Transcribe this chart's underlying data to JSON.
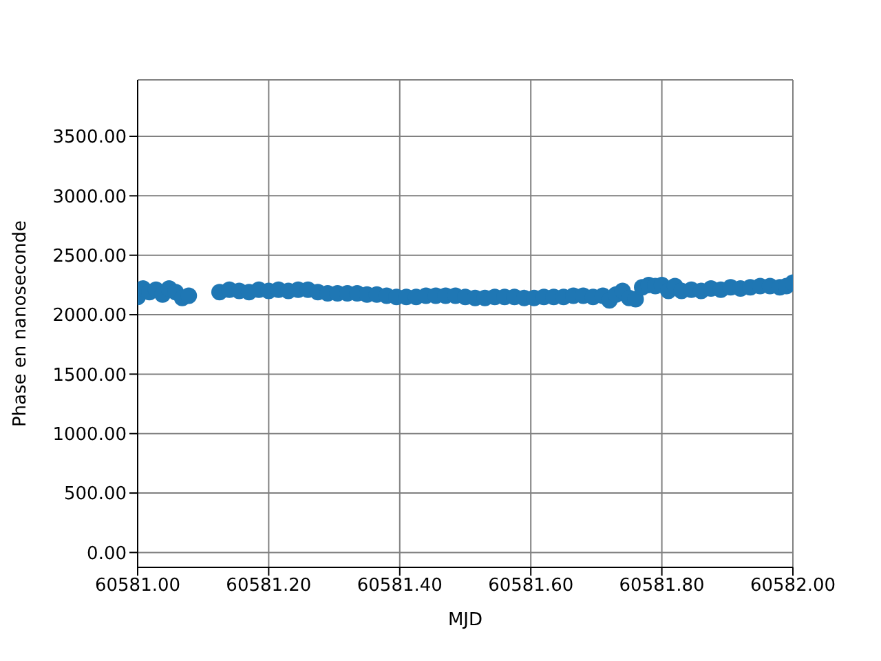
{
  "chart_data": {
    "type": "scatter",
    "xlabel": "MJD",
    "ylabel": "Phase en nanoseconde",
    "grid": true,
    "marker": "circle",
    "xlim": [
      60581.0,
      60582.0
    ],
    "xticks": [
      {
        "value": 60581.0,
        "label": "60581.00"
      },
      {
        "value": 60581.2,
        "label": "60581.20"
      },
      {
        "value": 60581.4,
        "label": "60581.40"
      },
      {
        "value": 60581.6,
        "label": "60581.60"
      },
      {
        "value": 60581.8,
        "label": "60581.80"
      },
      {
        "value": 60582.0,
        "label": "60582.00"
      }
    ],
    "ylim": [
      -125,
      3975
    ],
    "yticks": [
      {
        "value": 0,
        "label": "0.00"
      },
      {
        "value": 500,
        "label": "500.00"
      },
      {
        "value": 1000,
        "label": "1000.00"
      },
      {
        "value": 1500,
        "label": "1500.00"
      },
      {
        "value": 2000,
        "label": "2000.00"
      },
      {
        "value": 2500,
        "label": "2500.00"
      },
      {
        "value": 3000,
        "label": "3000.00"
      },
      {
        "value": 3500,
        "label": "3500.00"
      }
    ],
    "series": [
      {
        "color": "#1f77b4",
        "x": [
          60581.0,
          60581.008,
          60581.018,
          60581.028,
          60581.038,
          60581.048,
          60581.058,
          60581.068,
          60581.078,
          60581.125,
          60581.14,
          60581.155,
          60581.17,
          60581.185,
          60581.2,
          60581.215,
          60581.23,
          60581.245,
          60581.26,
          60581.275,
          60581.29,
          60581.305,
          60581.32,
          60581.335,
          60581.35,
          60581.365,
          60581.38,
          60581.395,
          60581.41,
          60581.425,
          60581.44,
          60581.455,
          60581.47,
          60581.485,
          60581.5,
          60581.515,
          60581.53,
          60581.545,
          60581.56,
          60581.575,
          60581.59,
          60581.605,
          60581.62,
          60581.635,
          60581.65,
          60581.665,
          60581.68,
          60581.695,
          60581.71,
          60581.72,
          60581.73,
          60581.74,
          60581.75,
          60581.76,
          60581.77,
          60581.78,
          60581.79,
          60581.8,
          60581.81,
          60581.82,
          60581.83,
          60581.845,
          60581.86,
          60581.875,
          60581.89,
          60581.905,
          60581.92,
          60581.935,
          60581.95,
          60581.965,
          60581.98,
          60581.99,
          60582.0
        ],
        "values": [
          2150,
          2220,
          2190,
          2210,
          2170,
          2220,
          2190,
          2140,
          2160,
          2190,
          2210,
          2200,
          2190,
          2210,
          2200,
          2210,
          2200,
          2210,
          2210,
          2190,
          2180,
          2180,
          2180,
          2180,
          2170,
          2170,
          2160,
          2150,
          2150,
          2150,
          2160,
          2160,
          2160,
          2160,
          2150,
          2140,
          2140,
          2150,
          2150,
          2150,
          2140,
          2140,
          2150,
          2150,
          2150,
          2160,
          2160,
          2150,
          2160,
          2120,
          2170,
          2200,
          2140,
          2130,
          2230,
          2250,
          2240,
          2250,
          2200,
          2240,
          2200,
          2210,
          2200,
          2220,
          2210,
          2230,
          2220,
          2230,
          2240,
          2240,
          2230,
          2240,
          2270
        ]
      }
    ]
  }
}
